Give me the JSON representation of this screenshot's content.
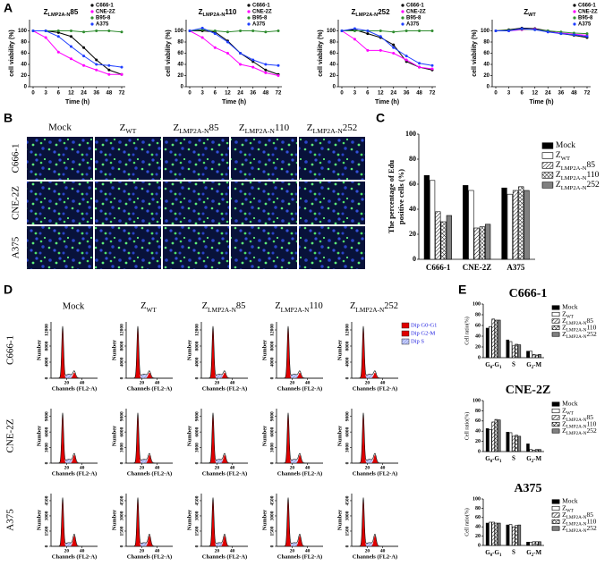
{
  "panel_labels": [
    "A",
    "B",
    "C",
    "D",
    "E"
  ],
  "chart_data": [
    {
      "type": "line",
      "title": [
        "Z",
        "LMP2A-N",
        "85"
      ],
      "x_label": "Time (h)",
      "y_label": "cell viability (%)",
      "categories": [
        "0",
        "3",
        "6",
        "12",
        "24",
        "36",
        "48",
        "72"
      ],
      "ylim": [
        0,
        120
      ],
      "yticks": [
        0,
        20,
        40,
        60,
        80,
        100
      ],
      "series": [
        {
          "name": "C666-1",
          "color": "#000000",
          "values": [
            100,
            100,
            97,
            90,
            70,
            48,
            30,
            22
          ]
        },
        {
          "name": "CNE-2Z",
          "color": "#ff00ff",
          "values": [
            100,
            88,
            62,
            50,
            38,
            30,
            22,
            22
          ]
        },
        {
          "name": "B95-8",
          "color": "#2e8b2e",
          "values": [
            100,
            100,
            100,
            100,
            98,
            100,
            100,
            98
          ]
        },
        {
          "name": "A375",
          "color": "#1f3fff",
          "values": [
            100,
            100,
            90,
            72,
            55,
            40,
            38,
            35
          ]
        }
      ]
    },
    {
      "type": "line",
      "title": [
        "Z",
        "LMP2A-N",
        "110"
      ],
      "x_label": "Time (h)",
      "y_label": "cell viability (%)",
      "categories": [
        "0",
        "3",
        "6",
        "12",
        "24",
        "36",
        "48",
        "72"
      ],
      "ylim": [
        0,
        120
      ],
      "yticks": [
        0,
        20,
        40,
        60,
        80,
        100
      ],
      "series": [
        {
          "name": "C666-1",
          "color": "#000000",
          "values": [
            100,
            100,
            98,
            82,
            60,
            45,
            30,
            22
          ]
        },
        {
          "name": "CNE-2Z",
          "color": "#ff00ff",
          "values": [
            100,
            88,
            70,
            60,
            40,
            35,
            25,
            20
          ]
        },
        {
          "name": "B95-8",
          "color": "#2e8b2e",
          "values": [
            100,
            102,
            100,
            98,
            100,
            100,
            98,
            100
          ]
        },
        {
          "name": "A375",
          "color": "#1f3fff",
          "values": [
            100,
            105,
            95,
            80,
            60,
            48,
            40,
            38
          ]
        }
      ]
    },
    {
      "type": "line",
      "title": [
        "Z",
        "LMP2A-N",
        "252"
      ],
      "x_label": "Time (h)",
      "y_label": "cell viability (%)",
      "categories": [
        "0",
        "3",
        "6",
        "12",
        "24",
        "36",
        "48",
        "72"
      ],
      "ylim": [
        0,
        120
      ],
      "yticks": [
        0,
        20,
        40,
        60,
        80,
        100
      ],
      "series": [
        {
          "name": "C666-1",
          "color": "#000000",
          "values": [
            100,
            102,
            95,
            88,
            75,
            45,
            35,
            30
          ]
        },
        {
          "name": "CNE-2Z",
          "color": "#ff00ff",
          "values": [
            100,
            85,
            65,
            65,
            60,
            48,
            35,
            32
          ]
        },
        {
          "name": "B95-8",
          "color": "#2e8b2e",
          "values": [
            100,
            100,
            100,
            100,
            98,
            100,
            100,
            100
          ]
        },
        {
          "name": "A375",
          "color": "#1f3fff",
          "values": [
            100,
            104,
            100,
            90,
            70,
            55,
            42,
            38
          ]
        }
      ]
    },
    {
      "type": "line",
      "title": [
        "Z",
        "WT"
      ],
      "x_label": "Time (h)",
      "y_label": "cell viability (%)",
      "categories": [
        "0",
        "3",
        "6",
        "12",
        "24",
        "36",
        "48",
        "72"
      ],
      "ylim": [
        0,
        120
      ],
      "yticks": [
        0,
        20,
        40,
        60,
        80,
        100
      ],
      "series": [
        {
          "name": "C666-1",
          "color": "#000000",
          "values": [
            100,
            102,
            105,
            104,
            100,
            95,
            92,
            88
          ]
        },
        {
          "name": "CNE-2Z",
          "color": "#ff00ff",
          "values": [
            100,
            100,
            102,
            103,
            98,
            96,
            94,
            92
          ]
        },
        {
          "name": "B95-8",
          "color": "#2e8b2e",
          "values": [
            100,
            101,
            103,
            102,
            100,
            98,
            96,
            95
          ]
        },
        {
          "name": "A375",
          "color": "#1f3fff",
          "values": [
            100,
            100,
            104,
            102,
            98,
            95,
            93,
            90
          ]
        }
      ]
    },
    {
      "type": "bar",
      "y_label_lines": [
        "The percentage of Edu",
        "positive cells (%)"
      ],
      "categories": [
        "C666-1",
        "CNE-2Z",
        "A375"
      ],
      "ylim": [
        0,
        100
      ],
      "yticks": [
        0,
        20,
        40,
        60,
        80,
        100
      ],
      "legend": "right",
      "series": [
        {
          "name": "Mock",
          "color": "#000000",
          "values": [
            67,
            59,
            57
          ]
        },
        {
          "name": [
            "Z",
            "WT"
          ],
          "color": "#ffffff",
          "values": [
            63,
            55,
            52
          ]
        },
        {
          "name": [
            "Z",
            "LMP2A-N",
            "85"
          ],
          "color": "#ffffff",
          "pattern": "diagonal",
          "values": [
            38,
            25,
            55
          ]
        },
        {
          "name": [
            "Z",
            "LMP2A-N",
            "110"
          ],
          "color": "#ffffff",
          "pattern": "cross",
          "values": [
            30,
            26,
            58
          ]
        },
        {
          "name": [
            "Z",
            "LMP2A-N",
            "252"
          ],
          "color": "#808080",
          "values": [
            35,
            28,
            55
          ]
        }
      ]
    },
    {
      "type": "bar",
      "title": "C666-1",
      "y_label": "Cell ratio(%)",
      "categories": [
        [
          "G",
          "0",
          "-G",
          "1"
        ],
        "S",
        [
          "G",
          "2",
          "-M"
        ]
      ],
      "ylim": [
        0,
        100
      ],
      "yticks": [
        0,
        20,
        40,
        60,
        80,
        100
      ],
      "legend": "right",
      "series": [
        {
          "name": "Mock",
          "color": "#000000",
          "values": [
            55,
            33,
            12
          ]
        },
        {
          "name": [
            "Z",
            "WT"
          ],
          "color": "#ffffff",
          "values": [
            58,
            30,
            12
          ]
        },
        {
          "name": [
            "Z",
            "LMP2A-N",
            "85"
          ],
          "color": "#ffffff",
          "pattern": "diagonal",
          "values": [
            72,
            22,
            6
          ]
        },
        {
          "name": [
            "Z",
            "LMP2A-N",
            "110"
          ],
          "color": "#ffffff",
          "pattern": "cross",
          "values": [
            70,
            25,
            5
          ]
        },
        {
          "name": [
            "Z",
            "LMP2A-N",
            "252"
          ],
          "color": "#808080",
          "values": [
            70,
            24,
            6
          ]
        }
      ]
    },
    {
      "type": "bar",
      "title": "CNE-2Z",
      "y_label": "Cell ratio(%)",
      "categories": [
        [
          "G",
          "0",
          "-G",
          "1"
        ],
        "S",
        [
          "G",
          "2",
          "-M"
        ]
      ],
      "ylim": [
        0,
        100
      ],
      "yticks": [
        0,
        20,
        40,
        60,
        80,
        100
      ],
      "legend": "right",
      "series": [
        {
          "name": "Mock",
          "color": "#000000",
          "values": [
            45,
            38,
            15
          ]
        },
        {
          "name": [
            "Z",
            "WT"
          ],
          "color": "#ffffff",
          "values": [
            43,
            37,
            4
          ]
        },
        {
          "name": [
            "Z",
            "LMP2A-N",
            "85"
          ],
          "color": "#ffffff",
          "pattern": "diagonal",
          "values": [
            58,
            30,
            3
          ]
        },
        {
          "name": [
            "Z",
            "LMP2A-N",
            "110"
          ],
          "color": "#ffffff",
          "pattern": "cross",
          "values": [
            63,
            32,
            4
          ]
        },
        {
          "name": [
            "Z",
            "LMP2A-N",
            "252"
          ],
          "color": "#808080",
          "values": [
            62,
            30,
            4
          ]
        }
      ]
    },
    {
      "type": "bar",
      "title": "A375",
      "y_label": "Cell ratio(%)",
      "categories": [
        [
          "G",
          "0",
          "-G",
          "1"
        ],
        "S",
        [
          "G",
          "2",
          "-M"
        ]
      ],
      "ylim": [
        0,
        100
      ],
      "yticks": [
        0,
        20,
        40,
        60,
        80,
        100
      ],
      "legend": "right",
      "series": [
        {
          "name": "Mock",
          "color": "#000000",
          "values": [
            48,
            44,
            7
          ]
        },
        {
          "name": [
            "Z",
            "WT"
          ],
          "color": "#ffffff",
          "values": [
            50,
            45,
            7
          ]
        },
        {
          "name": [
            "Z",
            "LMP2A-N",
            "85"
          ],
          "color": "#ffffff",
          "pattern": "diagonal",
          "values": [
            50,
            40,
            8
          ]
        },
        {
          "name": [
            "Z",
            "LMP2A-N",
            "110"
          ],
          "color": "#ffffff",
          "pattern": "cross",
          "values": [
            48,
            43,
            8
          ]
        },
        {
          "name": [
            "Z",
            "LMP2A-N",
            "252"
          ],
          "color": "#808080",
          "values": [
            48,
            44,
            8
          ]
        }
      ]
    }
  ],
  "microscopy": {
    "columns": [
      "Mock",
      [
        "Z",
        "WT"
      ],
      [
        "Z",
        "LMP2A-N",
        "85"
      ],
      [
        "Z",
        "LMP2A-N",
        "110"
      ],
      [
        "Z",
        "LMP2A-N",
        "252"
      ]
    ],
    "rows": [
      "C666-1",
      "CNE-2Z",
      "A375"
    ]
  },
  "cytometry": {
    "columns": [
      "Mock",
      [
        "Z",
        "WT"
      ],
      [
        "Z",
        "LMP2A-N",
        "85"
      ],
      [
        "Z",
        "LMP2A-N",
        "110"
      ],
      [
        "Z",
        "LMP2A-N",
        "252"
      ]
    ],
    "rows": [
      {
        "label": "C666-1",
        "ylim": [
          0,
          14000
        ],
        "yticks": [
          0,
          4000,
          8000,
          12000
        ]
      },
      {
        "label": "CNE-2Z",
        "ylim": [
          0,
          10500
        ],
        "yticks": [
          0,
          3000,
          6000,
          9000
        ]
      },
      {
        "label": "A375",
        "ylim": [
          0,
          5200
        ],
        "yticks": [
          0,
          1500,
          3000,
          4500
        ]
      }
    ],
    "xlim": [
      0,
      60
    ],
    "xticks": [
      20,
      40
    ],
    "x_label": "Channels (FL2-A)",
    "y_label": "Number",
    "legend": [
      {
        "name": "Dip G0-G1",
        "color": "#e00000"
      },
      {
        "name": "Dip G2-M",
        "color": "#e00000"
      },
      {
        "name": "Dip S",
        "color": "#c8d0ff",
        "pattern": "diagonal"
      }
    ]
  }
}
